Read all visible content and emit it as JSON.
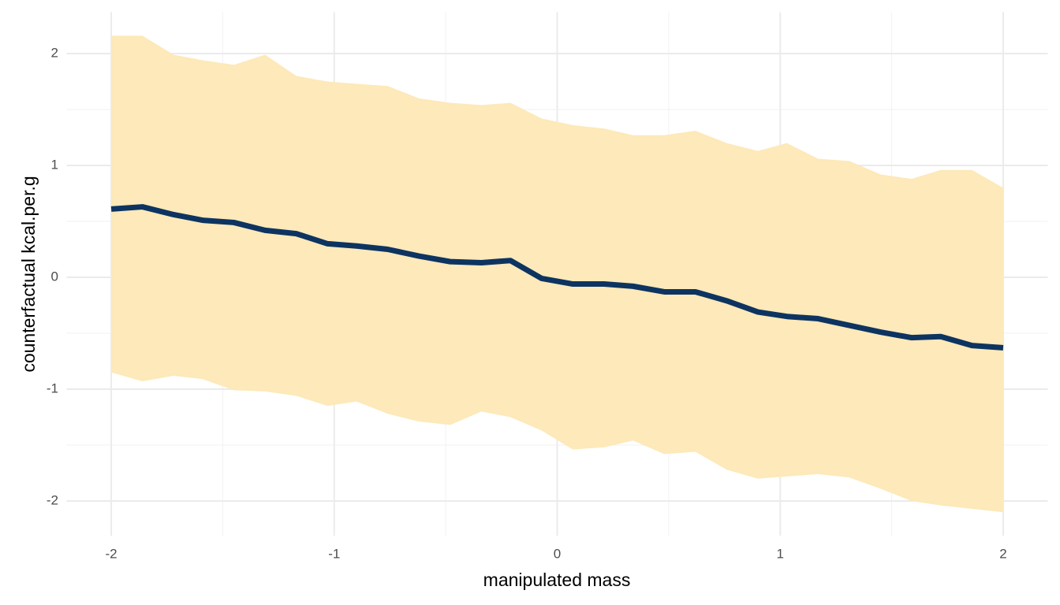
{
  "chart_data": {
    "type": "ribbon-line",
    "x_label": "manipulated mass",
    "y_label": "counterfactual kcal.per.g",
    "x": [
      -2,
      -1.86,
      -1.72,
      -1.59,
      -1.45,
      -1.31,
      -1.17,
      -1.03,
      -0.9,
      -0.76,
      -0.62,
      -0.48,
      -0.34,
      -0.21,
      -0.07,
      0.07,
      0.21,
      0.34,
      0.48,
      0.62,
      0.76,
      0.9,
      1.03,
      1.17,
      1.31,
      1.45,
      1.59,
      1.72,
      1.86,
      2
    ],
    "values": [
      0.61,
      0.63,
      0.56,
      0.51,
      0.49,
      0.42,
      0.39,
      0.3,
      0.28,
      0.25,
      0.19,
      0.14,
      0.13,
      0.15,
      -0.01,
      -0.06,
      -0.06,
      -0.08,
      -0.13,
      -0.13,
      -0.21,
      -0.31,
      -0.35,
      -0.37,
      -0.43,
      -0.49,
      -0.54,
      -0.53,
      -0.61,
      -0.63
    ],
    "upper": [
      2.16,
      2.16,
      1.99,
      1.94,
      1.9,
      1.99,
      1.8,
      1.75,
      1.73,
      1.71,
      1.6,
      1.56,
      1.54,
      1.56,
      1.42,
      1.36,
      1.33,
      1.27,
      1.27,
      1.31,
      1.2,
      1.13,
      1.2,
      1.06,
      1.04,
      0.92,
      0.88,
      0.96,
      0.96,
      0.8
    ],
    "lower": [
      -0.85,
      -0.93,
      -0.88,
      -0.91,
      -1.01,
      -1.02,
      -1.06,
      -1.15,
      -1.11,
      -1.22,
      -1.29,
      -1.32,
      -1.2,
      -1.25,
      -1.37,
      -1.54,
      -1.52,
      -1.46,
      -1.58,
      -1.56,
      -1.72,
      -1.8,
      -1.78,
      -1.76,
      -1.79,
      -1.89,
      -2,
      -2.04,
      -2.07,
      -2.1
    ],
    "color": "#0d3461",
    "band_color": "#fde9b9",
    "xlim": [
      -2.2,
      2.2
    ],
    "ylim": [
      -2.31,
      2.37
    ],
    "xticks": [
      -2,
      -1,
      0,
      1,
      2
    ],
    "yticks": [
      -2,
      -1,
      0,
      1,
      2
    ],
    "xminor": [
      -1.5,
      -0.5,
      0.5,
      1.5
    ],
    "yminor": [
      -1.5,
      -0.5,
      0.5,
      1.5
    ],
    "grid": true
  }
}
